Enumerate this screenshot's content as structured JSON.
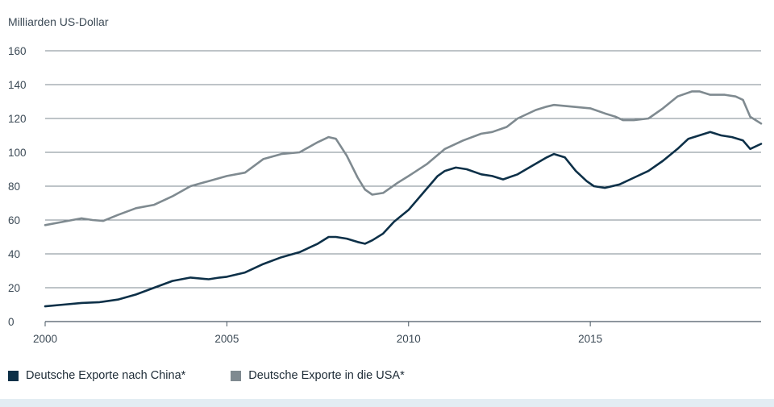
{
  "chart_data": {
    "type": "line",
    "unit_label": "Milliarden US-Dollar",
    "xlim": [
      2000,
      2019.7
    ],
    "ylim": [
      0,
      160
    ],
    "yticks": [
      0,
      20,
      40,
      60,
      80,
      100,
      120,
      140,
      160
    ],
    "xticks": [
      "2000",
      "2005",
      "2010",
      "2015"
    ],
    "grid": true,
    "legend_position": "bottom-left",
    "series": [
      {
        "name": "Deutsche Exporte nach China*",
        "color": "#0d3048",
        "x": [
          2000.0,
          2000.5,
          2001.0,
          2001.5,
          2002.0,
          2002.5,
          2003.0,
          2003.5,
          2004.0,
          2004.5,
          2004.8,
          2005.0,
          2005.5,
          2006.0,
          2006.5,
          2007.0,
          2007.5,
          2007.8,
          2008.0,
          2008.3,
          2008.6,
          2008.8,
          2009.0,
          2009.3,
          2009.6,
          2010.0,
          2010.4,
          2010.8,
          2011.0,
          2011.3,
          2011.6,
          2012.0,
          2012.3,
          2012.6,
          2013.0,
          2013.4,
          2013.8,
          2014.0,
          2014.3,
          2014.6,
          2014.9,
          2015.1,
          2015.4,
          2015.8,
          2016.2,
          2016.6,
          2017.0,
          2017.4,
          2017.7,
          2018.0,
          2018.3,
          2018.6,
          2018.9,
          2019.2,
          2019.4,
          2019.7
        ],
        "values": [
          9,
          10,
          11,
          11.5,
          13,
          16,
          20,
          24,
          26,
          25,
          26,
          26.5,
          29,
          34,
          38,
          41,
          46,
          50,
          50,
          49,
          47,
          46,
          48,
          52,
          59,
          66,
          76,
          86,
          89,
          91,
          90,
          87,
          86,
          84,
          87,
          92,
          97,
          99,
          97,
          89,
          83,
          80,
          79,
          81,
          85,
          89,
          95,
          102,
          108,
          110,
          112,
          110,
          109,
          107,
          102,
          105
        ]
      },
      {
        "name": "Deutsche Exporte in die USA*",
        "color": "#7f8a90",
        "x": [
          2000.0,
          2000.5,
          2001.0,
          2001.3,
          2001.6,
          2002.0,
          2002.5,
          2003.0,
          2003.5,
          2004.0,
          2004.5,
          2005.0,
          2005.5,
          2006.0,
          2006.5,
          2007.0,
          2007.5,
          2007.8,
          2008.0,
          2008.3,
          2008.6,
          2008.8,
          2009.0,
          2009.3,
          2009.7,
          2010.0,
          2010.5,
          2011.0,
          2011.5,
          2012.0,
          2012.3,
          2012.7,
          2013.0,
          2013.5,
          2013.8,
          2014.0,
          2014.5,
          2015.0,
          2015.4,
          2015.7,
          2015.9,
          2016.2,
          2016.6,
          2017.0,
          2017.4,
          2017.8,
          2018.0,
          2018.3,
          2018.7,
          2019.0,
          2019.2,
          2019.4,
          2019.7
        ],
        "values": [
          57,
          59,
          61,
          60,
          59.5,
          63,
          67,
          69,
          74,
          80,
          83,
          86,
          88,
          96,
          99,
          100,
          106,
          109,
          108,
          98,
          85,
          78,
          75,
          76,
          82,
          86,
          93,
          102,
          107,
          111,
          112,
          115,
          120,
          125,
          127,
          128,
          127,
          126,
          123,
          121,
          119,
          119,
          120,
          126,
          133,
          136,
          136,
          134,
          134,
          133,
          131,
          121,
          117
        ]
      }
    ]
  }
}
